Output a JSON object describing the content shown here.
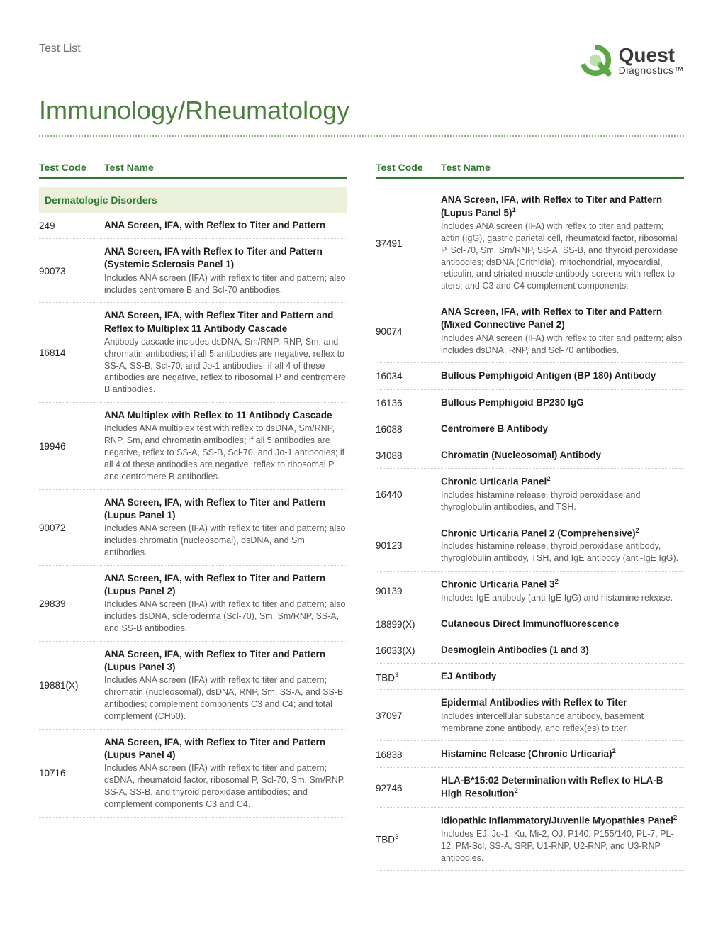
{
  "header": {
    "label": "Test List",
    "logo_main": "Quest",
    "logo_sub": "Diagnostics™"
  },
  "title": "Immunology/Rheumatology",
  "colors": {
    "brand_green": "#2d7a2d",
    "title_green": "#4a7f3c",
    "section_bg": "#eaf0da",
    "text": "#231f20",
    "desc": "#58595b",
    "dotted": "#c8c8c8"
  },
  "column_headers": {
    "code": "Test Code",
    "name": "Test Name"
  },
  "left": {
    "section": "Dermatologic Disorders",
    "rows": [
      {
        "code": "249",
        "name": "ANA Screen, IFA, with Reflex to Titer and Pattern"
      },
      {
        "code": "90073",
        "name": "ANA Screen, IFA with Reflex to Titer and Pattern (Systemic Sclerosis Panel 1)",
        "desc": "Includes ANA screen (IFA) with reflex to titer and pattern; also includes centromere B and Scl-70 antibodies."
      },
      {
        "code": "16814",
        "name": "ANA Screen, IFA, with Reflex Titer and Pattern and Reflex to Multiplex 11 Antibody Cascade",
        "desc": "Antibody cascade includes dsDNA, Sm/RNP, RNP, Sm, and chromatin antibodies; if all 5 antibodies are negative, reflex to SS-A, SS-B, Scl-70, and Jo-1 antibodies; if all 4 of these antibodies are negative, reflex to ribosomal P and centromere B antibodies."
      },
      {
        "code": "19946",
        "name": "ANA Multiplex with Reflex to 11 Antibody Cascade",
        "desc": "Includes ANA multiplex test with reflex to dsDNA, Sm/RNP, RNP, Sm, and chromatin antibodies; if all 5 antibodies are negative, reflex to SS-A, SS-B, Scl-70, and Jo-1 antibodies; if all 4 of these antibodies are negative, reflex to ribosomal P and centromere B antibodies."
      },
      {
        "code": "90072",
        "name": "ANA Screen, IFA, with Reflex to Titer and Pattern (Lupus Panel 1)",
        "desc": "Includes ANA screen (IFA) with reflex to titer and pattern; also includes chromatin (nucleosomal), dsDNA, and Sm antibodies."
      },
      {
        "code": "29839",
        "name": "ANA Screen, IFA, with Reflex to Titer and Pattern (Lupus Panel 2)",
        "desc": "Includes ANA screen (IFA) with reflex to titer and pattern; also includes dsDNA, scleroderma (Scl-70), Sm, Sm/RNP, SS-A, and SS-B antibodies."
      },
      {
        "code": "19881(X)",
        "name": "ANA Screen, IFA, with Reflex to Titer and Pattern (Lupus Panel 3)",
        "desc": "Includes ANA screen (IFA) with reflex to titer and pattern; chromatin (nucleosomal), dsDNA, RNP, Sm, SS-A, and SS-B antibodies; complement components C3 and C4; and total complement (CH50)."
      },
      {
        "code": "10716",
        "name": "ANA Screen, IFA, with Reflex to Titer and Pattern (Lupus Panel 4)",
        "desc": "Includes ANA screen (IFA) with reflex to titer and pattern; dsDNA, rheumatoid factor, ribosomal P, Scl-70, Sm, Sm/RNP, SS-A, SS-B, and thyroid peroxidase antibodies; and complement components C3 and C4."
      }
    ]
  },
  "right": {
    "rows": [
      {
        "code": "37491",
        "name": "ANA Screen, IFA, with Reflex to Titer and Pattern (Lupus Panel 5)¹",
        "desc": "Includes ANA screen (IFA) with reflex to titer and pattern; actin (IgG), gastric parietal cell, rheumatoid factor, ribosomal P, Scl-70, Sm, Sm/RNP, SS-A, SS-B, and thyroid peroxidase antibodies; dsDNA (Crithidia), mitochondrial, myocardial, reticulin, and striated muscle antibody screens with reflex to titers; and C3 and C4 complement components."
      },
      {
        "code": "90074",
        "name": "ANA Screen, IFA, with Reflex to Titer and Pattern (Mixed Connective Panel 2)",
        "desc": "Includes ANA screen (IFA) with reflex to titer and pattern; also includes dsDNA, RNP, and Scl-70 antibodies."
      },
      {
        "code": "16034",
        "name": "Bullous Pemphigoid Antigen (BP 180) Antibody"
      },
      {
        "code": "16136",
        "name": "Bullous Pemphigoid BP230 IgG"
      },
      {
        "code": "16088",
        "name": "Centromere B Antibody"
      },
      {
        "code": "34088",
        "name": "Chromatin (Nucleosomal) Antibody"
      },
      {
        "code": "16440",
        "name": "Chronic Urticaria Panel²",
        "desc": "Includes histamine release, thyroid peroxidase and thyroglobulin antibodies, and TSH."
      },
      {
        "code": "90123",
        "name": "Chronic Urticaria Panel 2 (Comprehensive)²",
        "desc": "Includes histamine release, thyroid peroxidase antibody, thyroglobulin antibody, TSH, and IgE antibody (anti-IgE IgG)."
      },
      {
        "code": "90139",
        "name": "Chronic Urticaria Panel 3²",
        "desc": "Includes IgE antibody (anti-IgE IgG) and histamine release."
      },
      {
        "code": "18899(X)",
        "name": "Cutaneous Direct Immunofluorescence"
      },
      {
        "code": "16033(X)",
        "name": "Desmoglein Antibodies (1 and 3)"
      },
      {
        "code": "TBD³",
        "name": "EJ Antibody"
      },
      {
        "code": "37097",
        "name": "Epidermal Antibodies with Reflex to Titer",
        "desc": "Includes intercellular substance antibody, basement membrane zone antibody, and reflex(es) to titer."
      },
      {
        "code": "16838",
        "name": "Histamine Release (Chronic Urticaria)²"
      },
      {
        "code": "92746",
        "name": "HLA-B*15:02 Determination with Reflex to HLA-B High Resolution²"
      },
      {
        "code": "TBD³",
        "name": "Idiopathic Inflammatory/Juvenile Myopathies Panel²",
        "desc": "Includes EJ, Jo-1, Ku, Mi-2, OJ, P140, P155/140, PL-7, PL-12, PM-Scl, SS-A, SRP, U1-RNP, U2-RNP, and U3-RNP antibodies."
      }
    ]
  }
}
